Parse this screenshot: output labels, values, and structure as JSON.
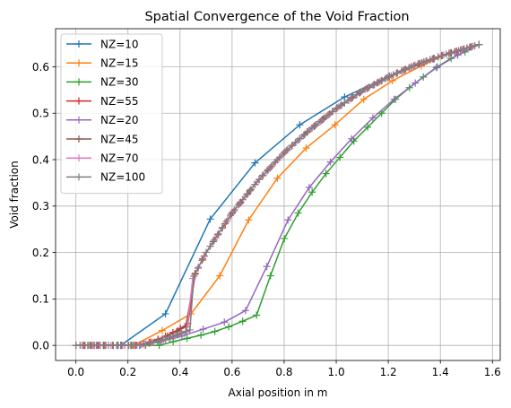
{
  "chart_data": {
    "type": "line",
    "title": "Spatial Convergence of the Void Fraction",
    "xlabel": "Axial position in m",
    "ylabel": "Void fraction",
    "xlim": [
      -0.078,
      1.63
    ],
    "ylim": [
      -0.0325,
      0.682
    ],
    "x_ticks": [
      "0.0",
      "0.2",
      "0.4",
      "0.6",
      "0.8",
      "1.0",
      "1.2",
      "1.4",
      "1.6"
    ],
    "y_ticks": [
      "0.0",
      "0.1",
      "0.2",
      "0.3",
      "0.4",
      "0.5",
      "0.6"
    ],
    "grid": true,
    "legend_position": "top-left",
    "marker": "+",
    "series": [
      {
        "name": "NZ=10",
        "color": "#1f77b4",
        "nz": 10,
        "x": [
          0.0,
          0.172,
          0.344,
          0.516,
          0.688,
          0.86,
          1.032,
          1.204,
          1.376,
          1.548
        ],
        "y": [
          0.0,
          0.0,
          0.068,
          0.272,
          0.393,
          0.475,
          0.535,
          0.58,
          0.617,
          0.648
        ]
      },
      {
        "name": "NZ=15",
        "color": "#ff7f0e",
        "nz": 15,
        "y": [
          0.0,
          0.0,
          0.0,
          0.032,
          0.068,
          0.15,
          0.27,
          0.36,
          0.425,
          0.475,
          0.53,
          0.57,
          0.602,
          0.63,
          0.648
        ]
      },
      {
        "name": "NZ=30",
        "color": "#2ca02c",
        "nz": 30,
        "y": [
          0.0,
          0.0,
          0.0,
          0.0,
          0.0,
          0.0,
          0.0,
          0.008,
          0.015,
          0.022,
          0.03,
          0.04,
          0.052,
          0.065,
          0.15,
          0.23,
          0.285,
          0.33,
          0.37,
          0.405,
          0.44,
          0.47,
          0.5,
          0.53,
          0.555,
          0.578,
          0.6,
          0.618,
          0.632,
          0.648
        ]
      },
      {
        "name": "NZ=55",
        "color": "#d62728",
        "nz": 55,
        "knee": 0.052
      },
      {
        "name": "NZ=20",
        "color": "#9467bd",
        "nz": 20,
        "y": [
          0.0,
          0.0,
          0.0,
          0.0,
          0.008,
          0.02,
          0.035,
          0.05,
          0.075,
          0.17,
          0.27,
          0.34,
          0.395,
          0.445,
          0.49,
          0.53,
          0.565,
          0.598,
          0.625,
          0.648
        ]
      },
      {
        "name": "NZ=45",
        "color": "#8c564b",
        "nz": 45,
        "knee": 0.048
      },
      {
        "name": "NZ=70",
        "color": "#e377c2",
        "nz": 70,
        "knee": 0.035
      },
      {
        "name": "NZ=100",
        "color": "#7f7f7f",
        "nz": 100,
        "knee": 0.035
      }
    ]
  }
}
